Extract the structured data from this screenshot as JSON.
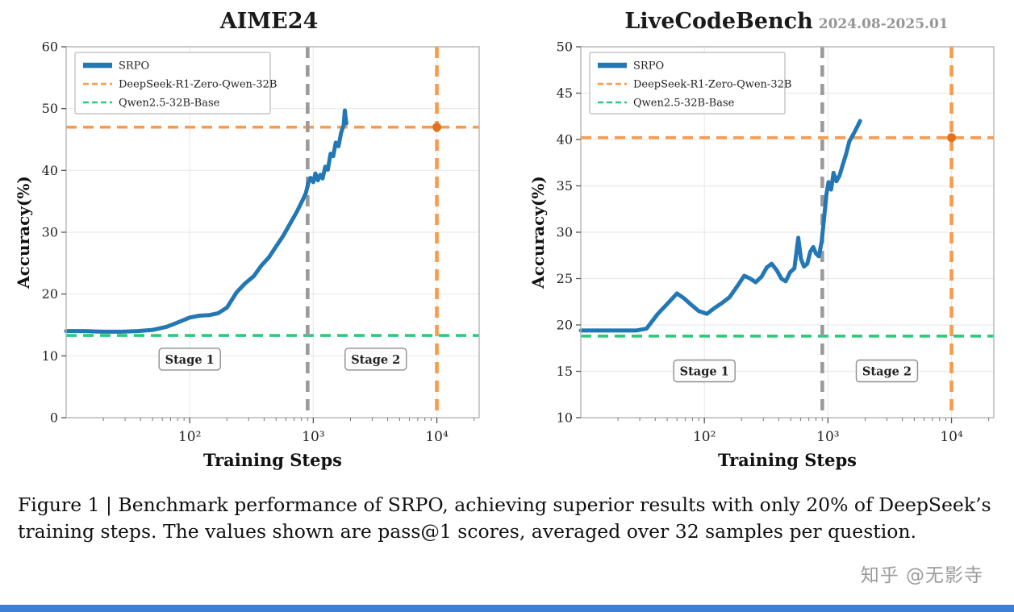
{
  "caption": {
    "text": "Figure 1 | Benchmark performance of SRPO, achieving superior results with only 20% of DeepSeek’s training steps. The values shown are pass@1 scores, averaged over 32 samples per question."
  },
  "watermark": "知乎 @无影寺",
  "colors": {
    "srpo": "#2277b4",
    "deepseek": "#f79c4d",
    "qwen": "#29cc7a",
    "stage_divider": "#9a9a9a",
    "marker": "#e2711d",
    "grid": "#eaeaea",
    "axis_border": "#b5b5b5",
    "bottom_bar": "#3d7ed6"
  },
  "chart_data": [
    {
      "type": "line",
      "title": "AIME24",
      "subtitle": "",
      "xlabel": "Training Steps",
      "ylabel": "Accuracy(%)",
      "xscale": "log",
      "xlim": [
        10,
        22000
      ],
      "ylim": [
        0,
        60
      ],
      "yticks": [
        0,
        10,
        20,
        30,
        40,
        50,
        60
      ],
      "xticks": [
        {
          "value": 100,
          "label": "10²"
        },
        {
          "value": 1000,
          "label": "10³"
        },
        {
          "value": 10000,
          "label": "10⁴"
        }
      ],
      "legend": [
        {
          "label": "SRPO",
          "color_key": "srpo",
          "style": "solid"
        },
        {
          "label": "DeepSeek-R1-Zero-Qwen-32B",
          "color_key": "deepseek",
          "style": "dashed"
        },
        {
          "label": "Qwen2.5-32B-Base",
          "color_key": "qwen",
          "style": "dashed"
        }
      ],
      "series": [
        {
          "name": "SRPO",
          "color_key": "srpo",
          "x": [
            10,
            14,
            20,
            28,
            38,
            50,
            65,
            80,
            100,
            120,
            145,
            170,
            200,
            240,
            280,
            330,
            380,
            440,
            500,
            570,
            650,
            740,
            820,
            870,
            910,
            950,
            1000,
            1040,
            1090,
            1140,
            1190,
            1250,
            1310,
            1380,
            1450,
            1520,
            1600,
            1680,
            1760,
            1800,
            1850
          ],
          "y": [
            14.0,
            14.0,
            13.9,
            13.9,
            14.0,
            14.2,
            14.7,
            15.4,
            16.2,
            16.5,
            16.6,
            16.9,
            17.8,
            20.3,
            21.7,
            22.9,
            24.6,
            26.0,
            27.7,
            29.4,
            31.4,
            33.4,
            35.2,
            36.3,
            37.9,
            38.8,
            38.1,
            39.5,
            38.4,
            39.3,
            38.7,
            40.6,
            40.1,
            42.7,
            42.3,
            44.5,
            43.9,
            46.1,
            47.3,
            49.7,
            47.6
          ]
        }
      ],
      "hlines": [
        {
          "name": "deepseek-score",
          "label": "DeepSeek-R1-Zero-Qwen-32B",
          "y": 47.0,
          "color_key": "deepseek"
        },
        {
          "name": "qwen-base-score",
          "label": "Qwen2.5-32B-Base",
          "y": 13.3,
          "color_key": "qwen"
        }
      ],
      "vlines": [
        {
          "name": "stage-boundary",
          "x": 900,
          "color_key": "stage_divider"
        },
        {
          "name": "deepseek-steps",
          "x": 10000,
          "color_key": "deepseek"
        }
      ],
      "marker": {
        "x": 10000,
        "y": 47.0,
        "color_key": "marker"
      },
      "annotations": [
        {
          "text": "Stage 1",
          "x": 100,
          "y": 9.4
        },
        {
          "text": "Stage 2",
          "x": 3200,
          "y": 9.4
        }
      ]
    },
    {
      "type": "line",
      "title": "LiveCodeBench",
      "subtitle": "2024.08-2025.01",
      "xlabel": "Training Steps",
      "ylabel": "Accuracy(%)",
      "xscale": "log",
      "xlim": [
        10,
        22000
      ],
      "ylim": [
        10,
        50
      ],
      "yticks": [
        10,
        15,
        20,
        25,
        30,
        35,
        40,
        45,
        50
      ],
      "xticks": [
        {
          "value": 100,
          "label": "10²"
        },
        {
          "value": 1000,
          "label": "10³"
        },
        {
          "value": 10000,
          "label": "10⁴"
        }
      ],
      "legend": [
        {
          "label": "SRPO",
          "color_key": "srpo",
          "style": "solid"
        },
        {
          "label": "DeepSeek-R1-Zero-Qwen-32B",
          "color_key": "deepseek",
          "style": "dashed"
        },
        {
          "label": "Qwen2.5-32B-Base",
          "color_key": "qwen",
          "style": "dashed"
        }
      ],
      "series": [
        {
          "name": "SRPO",
          "color_key": "srpo",
          "x": [
            10,
            14,
            20,
            28,
            34,
            42,
            52,
            60,
            68,
            78,
            90,
            105,
            120,
            140,
            160,
            185,
            210,
            235,
            260,
            290,
            320,
            350,
            385,
            420,
            455,
            495,
            535,
            575,
            605,
            640,
            680,
            720,
            760,
            800,
            845,
            890,
            930,
            970,
            1010,
            1060,
            1110,
            1170,
            1240,
            1320,
            1400,
            1490,
            1580,
            1670,
            1760,
            1820
          ],
          "y": [
            19.4,
            19.4,
            19.4,
            19.4,
            19.6,
            21.2,
            22.5,
            23.4,
            22.9,
            22.2,
            21.5,
            21.2,
            21.8,
            22.4,
            23.0,
            24.2,
            25.3,
            25.0,
            24.6,
            25.2,
            26.2,
            26.6,
            25.9,
            25.0,
            24.7,
            25.7,
            26.1,
            29.4,
            27.1,
            26.3,
            26.6,
            27.9,
            28.4,
            27.7,
            27.4,
            29.0,
            31.5,
            34.0,
            35.4,
            34.6,
            36.4,
            35.5,
            36.1,
            37.3,
            38.4,
            39.8,
            40.4,
            41.0,
            41.6,
            42.0
          ]
        }
      ],
      "hlines": [
        {
          "name": "deepseek-score",
          "label": "DeepSeek-R1-Zero-Qwen-32B",
          "y": 40.2,
          "color_key": "deepseek"
        },
        {
          "name": "qwen-base-score",
          "label": "Qwen2.5-32B-Base",
          "y": 18.8,
          "color_key": "qwen"
        }
      ],
      "vlines": [
        {
          "name": "stage-boundary",
          "x": 900,
          "color_key": "stage_divider"
        },
        {
          "name": "deepseek-steps",
          "x": 10000,
          "color_key": "deepseek"
        }
      ],
      "marker": {
        "x": 10000,
        "y": 40.2,
        "color_key": "marker"
      },
      "annotations": [
        {
          "text": "Stage 1",
          "x": 100,
          "y": 15.0
        },
        {
          "text": "Stage 2",
          "x": 3000,
          "y": 15.0
        }
      ]
    }
  ]
}
